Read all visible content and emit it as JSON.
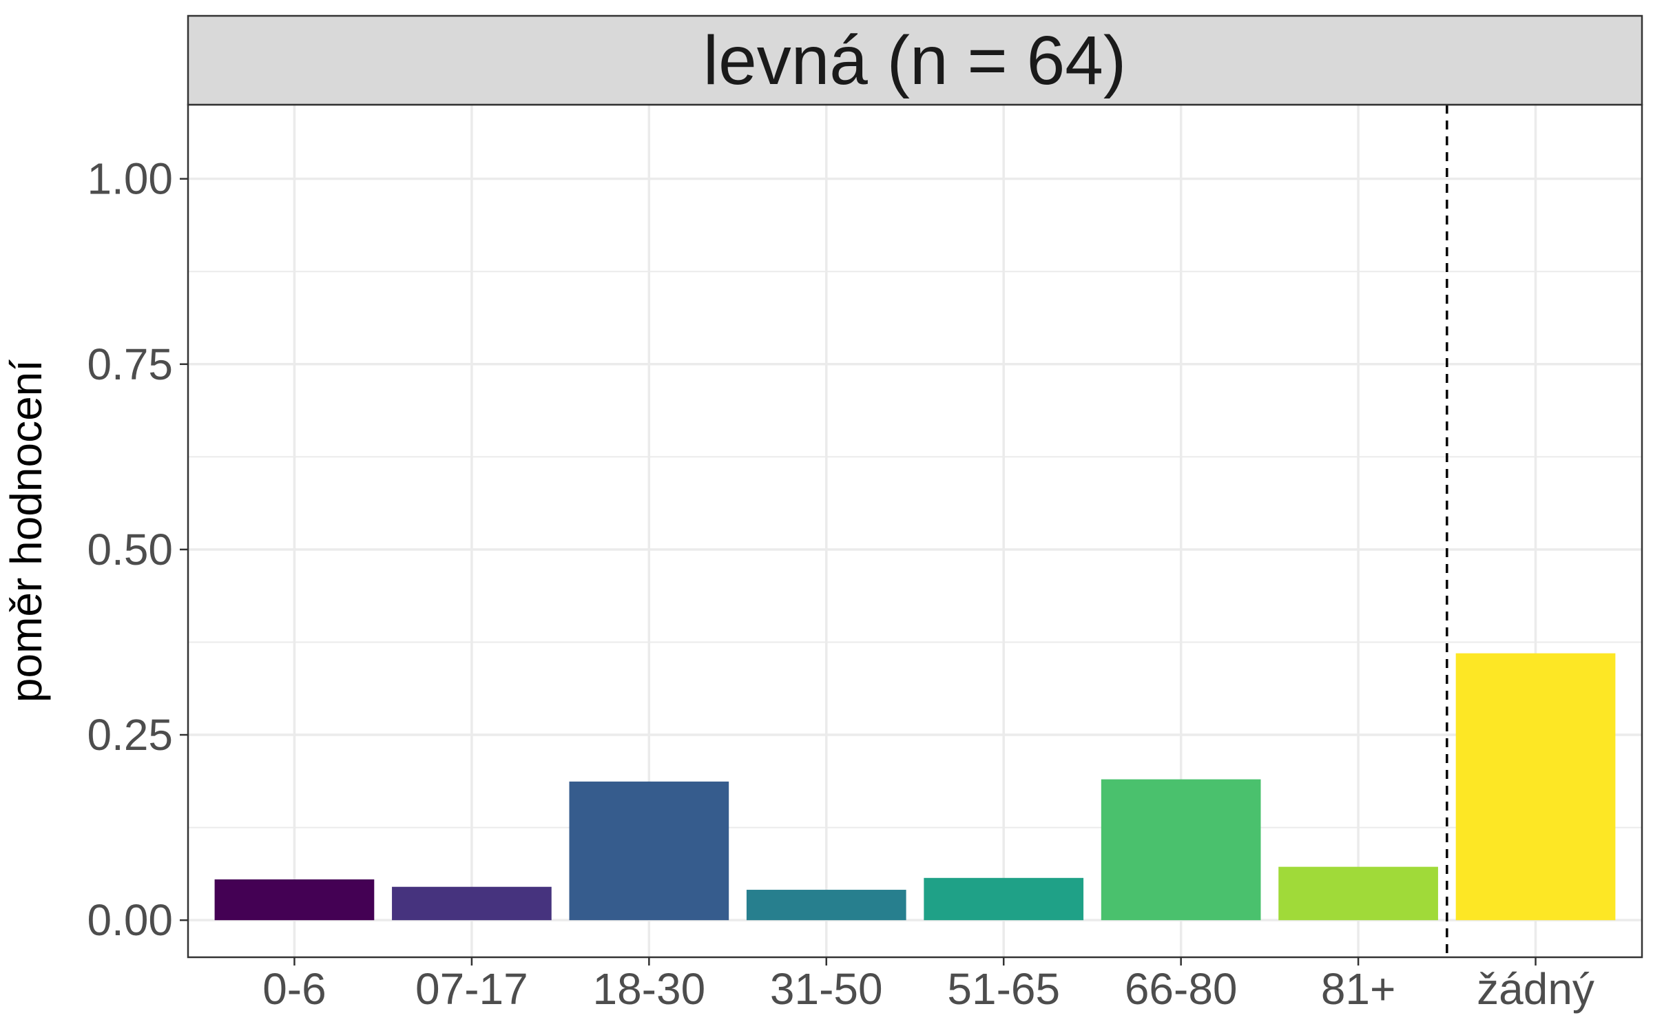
{
  "chart_data": {
    "type": "bar",
    "title": "levná (n = 64)",
    "xlabel": "",
    "ylabel": "poměr hodnocení",
    "categories": [
      "0-6",
      "07-17",
      "18-30",
      "31-50",
      "51-65",
      "66-80",
      "81+",
      "žádný"
    ],
    "values": [
      0.055,
      0.045,
      0.187,
      0.041,
      0.057,
      0.19,
      0.072,
      0.36
    ],
    "colors": [
      "#440154",
      "#46337e",
      "#365c8d",
      "#277f8e",
      "#1fa187",
      "#4ac16d",
      "#a0da39",
      "#fde725"
    ],
    "ylim": [
      -0.05,
      1.1
    ],
    "yticks": [
      0,
      0.25,
      0.5,
      0.75,
      1.0
    ],
    "ytick_labels": [
      "0.00",
      "0.25",
      "0.50",
      "0.75",
      "1.00"
    ],
    "reference_line": {
      "style": "dashed",
      "position": "between 81+ and žádný"
    },
    "grid": true,
    "legend": "none"
  }
}
